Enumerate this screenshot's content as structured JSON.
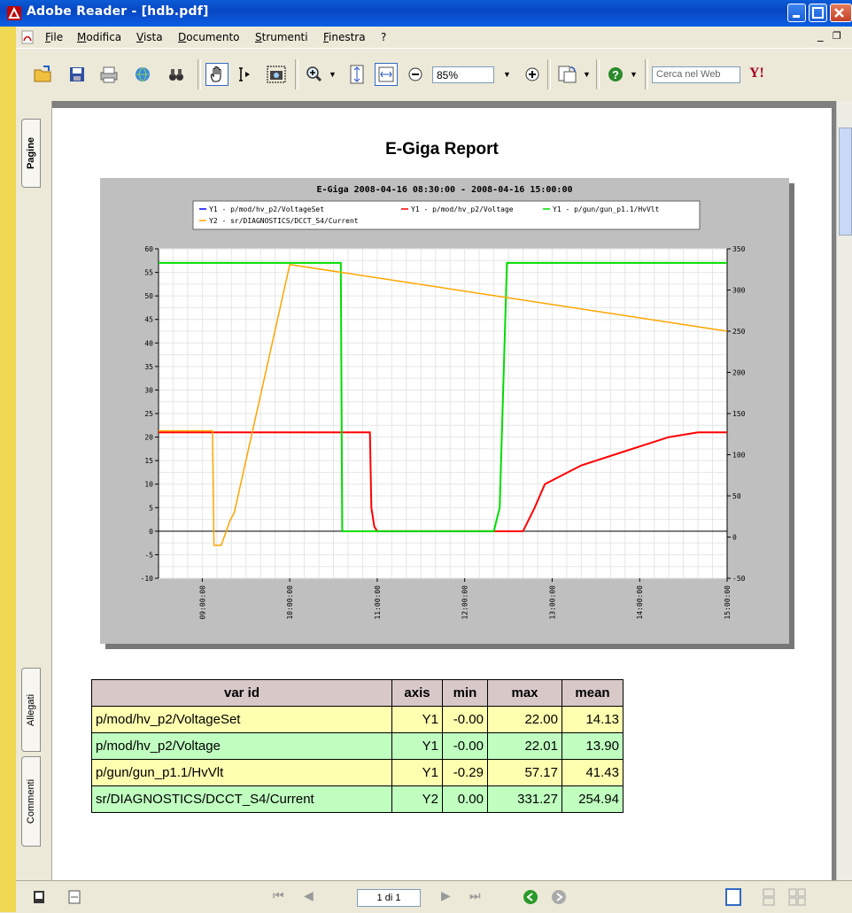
{
  "window": {
    "title": "Adobe Reader - [hdb.pdf]"
  },
  "menu": [
    "File",
    "Modifica",
    "Vista",
    "Documento",
    "Strumenti",
    "Finestra",
    "?"
  ],
  "toolbar": {
    "zoom": "85%",
    "search_placeholder": "Cerca nel Web"
  },
  "side_tabs": {
    "pages": "Pagine",
    "attachments": "Allegati",
    "comments": "Commenti"
  },
  "statusbar": {
    "page_indicator": "1 di 1"
  },
  "report": {
    "title": "E-Giga Report"
  },
  "chart_data": {
    "type": "line",
    "title": "E-Giga 2008-04-16 08:30:00 - 2008-04-16 15:00:00",
    "x_ticks": [
      "09:00:00",
      "10:00:00",
      "11:00:00",
      "12:00:00",
      "13:00:00",
      "14:00:00",
      "15:00:00"
    ],
    "y1_ticks": [
      60,
      55,
      50,
      45,
      40,
      35,
      30,
      25,
      20,
      15,
      10,
      5,
      0,
      -5,
      -10
    ],
    "y1lim": [
      -10,
      60
    ],
    "y2_ticks": [
      350,
      300,
      250,
      200,
      150,
      100,
      50,
      0,
      -50
    ],
    "y2lim": [
      -50,
      350
    ],
    "xlim_hours": [
      8.5,
      15.0
    ],
    "grid": true,
    "legend_position": "top",
    "series": [
      {
        "name": "Y1 - p/mod/hv_p2/VoltageSet",
        "axis": "Y1",
        "color": "#0000ff",
        "x": [],
        "y": []
      },
      {
        "name": "Y1 - p/mod/hv_p2/Voltage",
        "axis": "Y1",
        "color": "#ff0000",
        "x": [
          "08:30:00",
          "10:55:00",
          "10:56:00",
          "10:58:00",
          "11:00:00",
          "12:20:00",
          "12:40:00",
          "12:48:00",
          "12:55:00",
          "13:20:00",
          "13:50:00",
          "14:20:00",
          "14:40:00",
          "15:00:00"
        ],
        "y": [
          21,
          21,
          5,
          1,
          0,
          0,
          0,
          5,
          10,
          14,
          17,
          20,
          21,
          21
        ]
      },
      {
        "name": "Y1 - p/gun/gun_p1.1/HvVlt",
        "axis": "Y1",
        "color": "#00dd00",
        "x": [
          "08:30:00",
          "10:35:00",
          "10:36:00",
          "12:20:00",
          "12:24:00",
          "12:29:00",
          "12:30:00",
          "15:00:00"
        ],
        "y": [
          57,
          57,
          0,
          0,
          5,
          57,
          57,
          57
        ]
      },
      {
        "name": "Y2 - sr/DIAGNOSTICS/DCCT_S4/Current",
        "axis": "Y2",
        "color": "#ffa500",
        "x": [
          "08:30:00",
          "09:07:00",
          "09:08:00",
          "09:13:00",
          "09:19:00",
          "09:22:00",
          "10:00:00",
          "15:00:00"
        ],
        "y": [
          129,
          129,
          -10,
          -10,
          20,
          30,
          331,
          250
        ]
      }
    ]
  },
  "stats_table": {
    "headers": [
      "var id",
      "axis",
      "min",
      "max",
      "mean"
    ],
    "rows": [
      [
        "p/mod/hv_p2/VoltageSet",
        "Y1",
        "-0.00",
        "22.00",
        "14.13"
      ],
      [
        "p/mod/hv_p2/Voltage",
        "Y1",
        "-0.00",
        "22.01",
        "13.90"
      ],
      [
        "p/gun/gun_p1.1/HvVlt",
        "Y1",
        "-0.29",
        "57.17",
        "41.43"
      ],
      [
        "sr/DIAGNOSTICS/DCCT_S4/Current",
        "Y2",
        "0.00",
        "331.27",
        "254.94"
      ]
    ]
  }
}
